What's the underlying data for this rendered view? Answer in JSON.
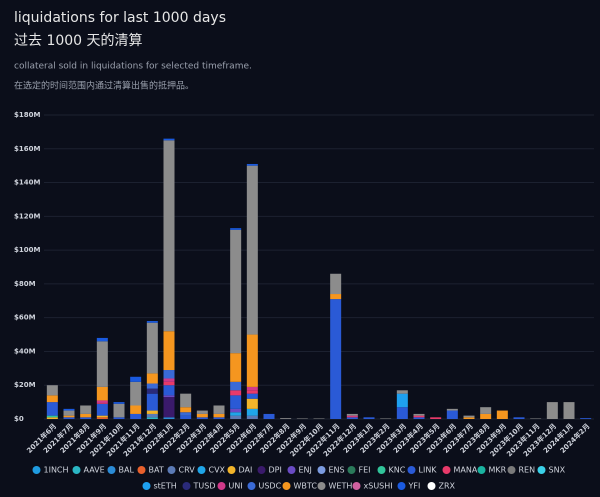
{
  "chart_data": {
    "type": "stacked_bar",
    "title": "liquidations for last 1000 days",
    "title_zh": "过去 1000 天的清算",
    "subtitle": "collateral sold in liquidations for selected timeframe.",
    "subtitle_zh": "在选定的时间范围内通过清算出售的抵押品。",
    "categories": [
      "2021年6月",
      "2021年7月",
      "2021年8月",
      "2021年9月",
      "2021年10月",
      "2021年11月",
      "2021年12月",
      "2022年1月",
      "2022年2月",
      "2022年3月",
      "2022年4月",
      "2022年5月",
      "2022年6月",
      "2022年7月",
      "2022年8月",
      "2022年9月",
      "2022年10月",
      "2022年11月",
      "2022年12月",
      "2023年1月",
      "2023年2月",
      "2023年3月",
      "2023年4月",
      "2023年5月",
      "2023年6月",
      "2023年7月",
      "2023年8月",
      "2023年9月",
      "2023年10月",
      "2023年11月",
      "2023年12月",
      "2024年1月",
      "2024年2月"
    ],
    "ylim": [
      0,
      180000000
    ],
    "yticks": [
      {
        "value": 0,
        "label": "$0"
      },
      {
        "value": 20000000,
        "label": "$20M"
      },
      {
        "value": 40000000,
        "label": "$40M"
      },
      {
        "value": 60000000,
        "label": "$60M"
      },
      {
        "value": 80000000,
        "label": "$80M"
      },
      {
        "value": 100000000,
        "label": "$100M"
      },
      {
        "value": 120000000,
        "label": "$120M"
      },
      {
        "value": 140000000,
        "label": "$140M"
      },
      {
        "value": 160000000,
        "label": "$160M"
      },
      {
        "value": 180000000,
        "label": "$180M"
      }
    ],
    "grid": true,
    "series": [
      {
        "name": "1INCH",
        "color": "#1f9be0",
        "values": [
          0,
          0,
          0,
          0,
          0,
          0,
          0,
          0,
          0,
          0,
          0,
          0,
          0,
          0,
          0,
          0,
          0,
          0,
          0,
          0,
          0,
          0,
          0,
          0,
          0,
          0,
          0,
          0,
          0,
          0,
          0,
          0,
          0
        ]
      },
      {
        "name": "AAVE",
        "color": "#2bb6c4",
        "values": [
          0,
          0,
          0,
          0,
          0,
          0,
          1000000,
          0,
          0,
          0,
          0,
          0,
          0,
          0,
          0,
          0,
          0,
          0,
          0,
          0,
          0,
          0,
          0,
          0,
          0,
          0,
          0,
          0,
          0,
          0,
          0,
          0,
          0
        ]
      },
      {
        "name": "BAL",
        "color": "#2b8bd6",
        "values": [
          0,
          0,
          0,
          0,
          0,
          0,
          0,
          1000000,
          0,
          0,
          0,
          0,
          0,
          0,
          0,
          0,
          0,
          0,
          0,
          0,
          0,
          0,
          0,
          0,
          0,
          0,
          0,
          0,
          0,
          0,
          0,
          0,
          0
        ]
      },
      {
        "name": "BAT",
        "color": "#e8602c",
        "values": [
          0,
          0,
          0,
          1000000,
          0,
          0,
          0,
          0,
          0,
          0,
          0,
          0,
          0,
          0,
          0,
          0,
          0,
          0,
          0,
          0,
          0,
          0,
          0,
          0,
          0,
          0,
          0,
          0,
          0,
          0,
          0,
          0,
          0
        ]
      },
      {
        "name": "CRV",
        "color": "#5b7ab5",
        "values": [
          0,
          0,
          0,
          0,
          0,
          0,
          2000000,
          0,
          0,
          0,
          0,
          2000000,
          2000000,
          0,
          0,
          0,
          0,
          0,
          0,
          0,
          0,
          0,
          0,
          0,
          0,
          0,
          0,
          0,
          0,
          0,
          0,
          0,
          0
        ]
      },
      {
        "name": "CVX",
        "color": "#1fa5e8",
        "values": [
          0,
          0,
          0,
          0,
          0,
          0,
          0,
          0,
          0,
          0,
          0,
          2000000,
          4000000,
          0,
          0,
          0,
          0,
          0,
          0,
          0,
          0,
          0,
          0,
          0,
          0,
          0,
          0,
          0,
          0,
          0,
          0,
          0,
          0
        ]
      },
      {
        "name": "DAI",
        "color": "#f2b42a",
        "values": [
          1000000,
          0,
          0,
          1000000,
          0,
          0,
          2000000,
          0,
          0,
          0,
          0,
          0,
          6000000,
          0,
          0,
          0,
          0,
          0,
          0,
          0,
          0,
          0,
          0,
          0,
          0,
          0,
          0,
          0,
          0,
          0,
          0,
          0,
          0
        ]
      },
      {
        "name": "DPI",
        "color": "#3a1a6b",
        "values": [
          0,
          0,
          0,
          0,
          0,
          0,
          0,
          12000000,
          0,
          0,
          0,
          0,
          0,
          0,
          0,
          0,
          0,
          0,
          0,
          0,
          0,
          0,
          0,
          0,
          0,
          0,
          0,
          0,
          0,
          0,
          0,
          0,
          0
        ]
      },
      {
        "name": "ENJ",
        "color": "#6a4bc4",
        "values": [
          0,
          0,
          0,
          0,
          0,
          0,
          0,
          1000000,
          0,
          0,
          0,
          2000000,
          0,
          0,
          0,
          0,
          0,
          0,
          0,
          0,
          0,
          0,
          0,
          0,
          0,
          0,
          0,
          0,
          0,
          0,
          0,
          0,
          0
        ]
      },
      {
        "name": "ENS",
        "color": "#7b9be0",
        "values": [
          0,
          0,
          0,
          0,
          0,
          0,
          0,
          0,
          0,
          0,
          0,
          0,
          0,
          0,
          0,
          0,
          0,
          0,
          0,
          0,
          0,
          0,
          0,
          0,
          0,
          0,
          0,
          0,
          0,
          0,
          0,
          0,
          0
        ]
      },
      {
        "name": "FEI",
        "color": "#2a7a5a",
        "values": [
          0,
          0,
          0,
          0,
          0,
          0,
          0,
          0,
          0,
          0,
          0,
          0,
          0,
          0,
          0,
          0,
          0,
          0,
          0,
          0,
          0,
          0,
          0,
          0,
          0,
          0,
          0,
          0,
          0,
          0,
          0,
          0,
          0
        ]
      },
      {
        "name": "KNC",
        "color": "#31c49a",
        "values": [
          1000000,
          0,
          0,
          0,
          0,
          0,
          0,
          0,
          0,
          0,
          0,
          0,
          0,
          0,
          0,
          0,
          0,
          0,
          0,
          0,
          0,
          0,
          0,
          0,
          0,
          0,
          0,
          0,
          0,
          0,
          0,
          0,
          0
        ]
      },
      {
        "name": "LINK",
        "color": "#2a5ad6",
        "values": [
          8000000,
          1000000,
          1000000,
          7000000,
          1000000,
          3000000,
          10000000,
          6000000,
          2000000,
          1000000,
          1000000,
          8000000,
          3000000,
          3000000,
          0,
          0,
          0,
          71000000,
          1000000,
          1000000,
          0,
          7000000,
          1000000,
          0,
          5000000,
          0,
          0,
          0,
          1000000,
          0,
          0,
          0,
          500000
        ]
      },
      {
        "name": "MANA",
        "color": "#e83a6a",
        "values": [
          0,
          0,
          0,
          500000,
          0,
          0,
          0,
          2000000,
          0,
          0,
          0,
          3000000,
          2000000,
          0,
          0,
          0,
          0,
          0,
          500000,
          0,
          0,
          0,
          1000000,
          1000000,
          0,
          0,
          0,
          0,
          0,
          0,
          0,
          0,
          0
        ]
      },
      {
        "name": "MKR",
        "color": "#1ab3a0",
        "values": [
          0,
          0,
          0,
          0,
          0,
          0,
          0,
          0,
          0,
          0,
          0,
          0,
          0,
          0,
          0,
          0,
          0,
          0,
          0,
          0,
          0,
          0,
          0,
          0,
          0,
          0,
          0,
          0,
          0,
          0,
          0,
          0,
          0
        ]
      },
      {
        "name": "REN",
        "color": "#7a7a7a",
        "values": [
          0,
          0,
          0,
          0,
          0,
          0,
          0,
          0,
          0,
          0,
          0,
          0,
          0,
          0,
          0,
          0,
          0,
          0,
          0,
          0,
          0,
          0,
          0,
          0,
          0,
          0,
          0,
          0,
          0,
          0,
          0,
          0,
          0
        ]
      },
      {
        "name": "SNX",
        "color": "#3ad0e8",
        "values": [
          0,
          0,
          0,
          0,
          0,
          0,
          0,
          0,
          0,
          0,
          0,
          0,
          0,
          0,
          0,
          0,
          0,
          0,
          0,
          0,
          0,
          0,
          0,
          0,
          0,
          0,
          0,
          0,
          0,
          0,
          0,
          0,
          0
        ]
      },
      {
        "name": "stETH",
        "color": "#1ea0f0",
        "values": [
          0,
          0,
          0,
          0,
          0,
          0,
          0,
          0,
          0,
          0,
          0,
          0,
          0,
          0,
          0,
          0,
          0,
          0,
          0,
          0,
          0,
          8000000,
          0,
          0,
          0,
          0,
          0,
          0,
          0,
          0,
          0,
          0,
          0
        ]
      },
      {
        "name": "TUSD",
        "color": "#2a2a7a",
        "values": [
          0,
          0,
          0,
          0,
          0,
          0,
          3000000,
          0,
          0,
          0,
          0,
          0,
          0,
          0,
          0,
          0,
          0,
          0,
          0,
          0,
          0,
          0,
          0,
          0,
          0,
          0,
          0,
          0,
          0,
          0,
          0,
          0,
          0
        ]
      },
      {
        "name": "UNI",
        "color": "#d03a8a",
        "values": [
          0,
          0,
          0,
          1500000,
          0,
          0,
          0,
          2000000,
          0,
          0,
          0,
          0,
          2000000,
          0,
          0,
          0,
          0,
          0,
          500000,
          0,
          0,
          0,
          0,
          0,
          0,
          0,
          0,
          0,
          0,
          0,
          0,
          0,
          0
        ]
      },
      {
        "name": "USDC",
        "color": "#3a6ad6",
        "values": [
          0,
          0,
          0,
          0,
          0,
          0,
          3000000,
          5000000,
          2000000,
          0,
          0,
          5000000,
          0,
          0,
          0,
          0,
          0,
          0,
          0,
          0,
          0,
          0,
          0,
          0,
          0,
          0,
          0,
          0,
          0,
          0,
          0,
          0,
          0
        ]
      },
      {
        "name": "WBTC",
        "color": "#f5961f",
        "values": [
          4000000,
          1000000,
          2000000,
          8000000,
          0,
          5000000,
          6000000,
          23000000,
          3000000,
          2000000,
          2000000,
          17000000,
          31000000,
          0,
          0,
          0,
          0,
          3000000,
          0,
          0,
          0,
          0,
          0,
          0,
          0,
          1000000,
          3000000,
          5000000,
          0,
          0,
          0,
          0,
          0
        ]
      },
      {
        "name": "WETH",
        "color": "#8c8c8c",
        "values": [
          6000000,
          3000000,
          5000000,
          27000000,
          8000000,
          14000000,
          30000000,
          113000000,
          8000000,
          2000000,
          5000000,
          73000000,
          100000000,
          0,
          500000,
          300000,
          300000,
          12000000,
          1000000,
          0,
          300000,
          2000000,
          1000000,
          0,
          1000000,
          1000000,
          4000000,
          0,
          0,
          300000,
          10000000,
          10000000,
          0
        ]
      },
      {
        "name": "xSUSHI",
        "color": "#d060a0",
        "values": [
          0,
          0,
          0,
          0,
          0,
          0,
          0,
          0,
          0,
          0,
          0,
          0,
          0,
          0,
          0,
          0,
          0,
          0,
          0,
          0,
          0,
          0,
          0,
          0,
          0,
          0,
          0,
          0,
          0,
          0,
          0,
          0,
          0
        ]
      },
      {
        "name": "YFI",
        "color": "#1a5ae0",
        "values": [
          0,
          1000000,
          0,
          2000000,
          1000000,
          3000000,
          1000000,
          1000000,
          0,
          0,
          0,
          1000000,
          1000000,
          0,
          0,
          0,
          0,
          0,
          0,
          0,
          0,
          0,
          0,
          0,
          0,
          0,
          0,
          0,
          0,
          0,
          0,
          0,
          0
        ]
      },
      {
        "name": "ZRX",
        "color": "#ffffff",
        "values": [
          0,
          0,
          0,
          0,
          0,
          0,
          0,
          0,
          0,
          0,
          0,
          0,
          0,
          0,
          0,
          0,
          0,
          0,
          0,
          0,
          0,
          0,
          0,
          0,
          0,
          0,
          0,
          0,
          0,
          0,
          0,
          0,
          0
        ]
      }
    ]
  }
}
